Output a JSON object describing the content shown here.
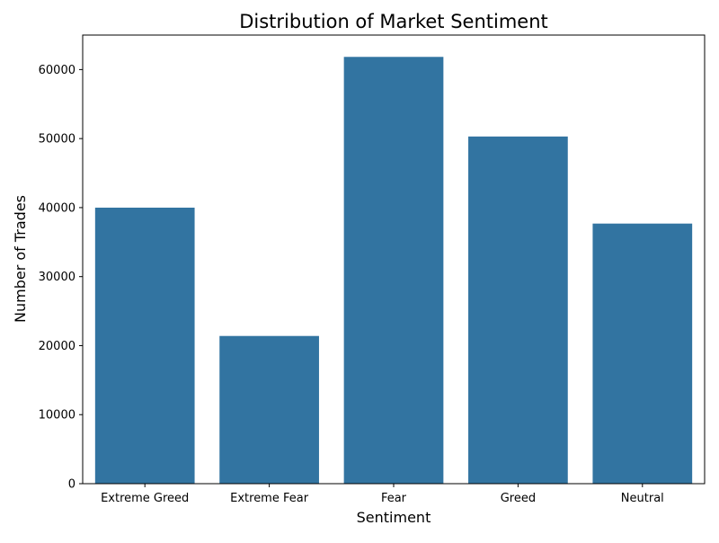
{
  "chart_data": {
    "type": "bar",
    "title": "Distribution of Market Sentiment",
    "xlabel": "Sentiment",
    "ylabel": "Number of Trades",
    "categories": [
      "Extreme Greed",
      "Extreme Fear",
      "Fear",
      "Greed",
      "Neutral"
    ],
    "values": [
      39992,
      21400,
      61837,
      50303,
      37686
    ],
    "ylim": [
      0,
      65000
    ],
    "yticks": [
      0,
      10000,
      20000,
      30000,
      40000,
      50000,
      60000
    ],
    "grid": false,
    "legend": "none",
    "bar_color": "#3274a1"
  }
}
